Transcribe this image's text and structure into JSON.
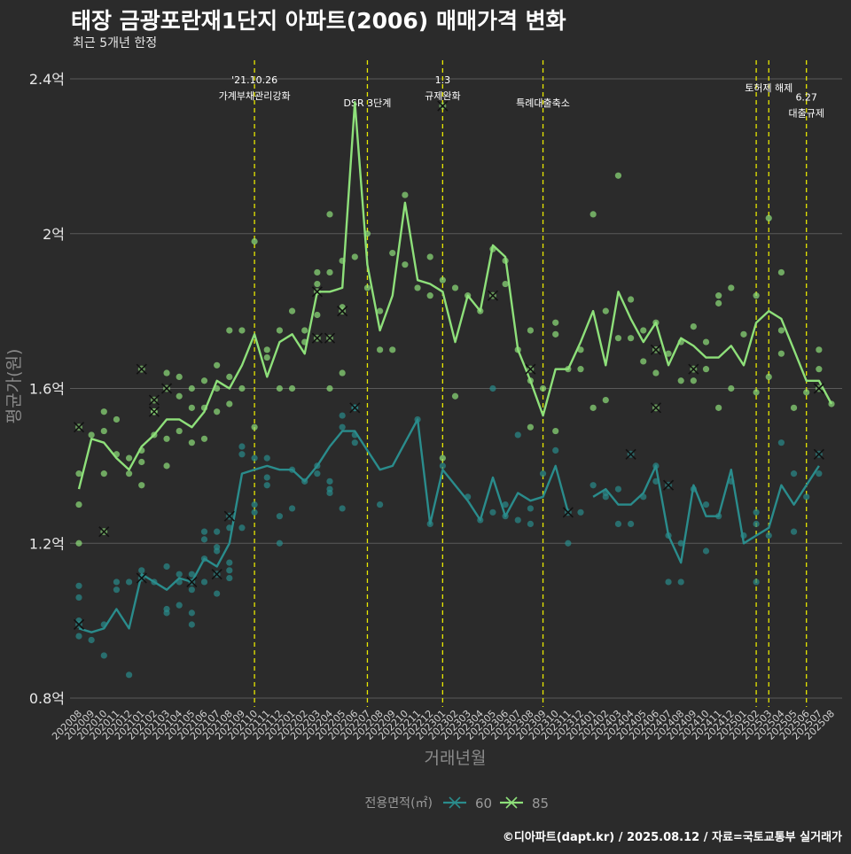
{
  "header": {
    "title": "태장 금광포란재1단지 아파트(2006) 매매가격 변화",
    "subtitle": "최근 5개년 한정",
    "caption": "©디아파트(dapt.kr) / 2025.08.12 / 자료=국토교통부 실거래가"
  },
  "colors": {
    "background": "#2b2b2b",
    "grid": "#5a5a5a",
    "event_line": "#e8e800",
    "s60": "#2a8c8c",
    "s85": "#8ee07a"
  },
  "chart_data": {
    "type": "line",
    "xlabel": "거래년월",
    "ylabel": "평균가(원)",
    "ylim": [
      0.8,
      2.4
    ],
    "yticks": [
      0.8,
      1.2,
      1.6,
      2.0,
      2.4
    ],
    "ytick_labels": [
      "0.8억",
      "1.2억",
      "1.6억",
      "2억",
      "2.4억"
    ],
    "grid": true,
    "legend": {
      "title": "전용면적(㎡)",
      "placement": "bottom",
      "items": [
        "60",
        "85"
      ]
    },
    "categories": [
      "202008",
      "202009",
      "202010",
      "202011",
      "202012",
      "202101",
      "202102",
      "202103",
      "202104",
      "202105",
      "202106",
      "202107",
      "202108",
      "202109",
      "202110",
      "202111",
      "202112",
      "202201",
      "202202",
      "202203",
      "202204",
      "202205",
      "202206",
      "202207",
      "202208",
      "202209",
      "202210",
      "202211",
      "202212",
      "202301",
      "202302",
      "202303",
      "202304",
      "202305",
      "202306",
      "202307",
      "202308",
      "202309",
      "202310",
      "202311",
      "202312",
      "202401",
      "202402",
      "202403",
      "202404",
      "202405",
      "202406",
      "202407",
      "202408",
      "202409",
      "202410",
      "202411",
      "202412",
      "202501",
      "202502",
      "202503",
      "202504",
      "202505",
      "202506",
      "202507",
      "202508"
    ],
    "series": [
      {
        "name": "60",
        "values": [
          0.98,
          0.97,
          0.98,
          1.03,
          0.98,
          1.12,
          1.1,
          1.08,
          1.11,
          1.1,
          1.16,
          1.14,
          1.2,
          1.38,
          1.39,
          1.4,
          1.39,
          1.39,
          1.36,
          1.4,
          1.45,
          1.49,
          1.49,
          1.44,
          1.39,
          1.4,
          1.46,
          1.52,
          1.25,
          1.39,
          1.35,
          1.31,
          1.26,
          1.37,
          1.27,
          1.33,
          1.31,
          1.32,
          1.4,
          1.28,
          null,
          1.32,
          1.34,
          1.3,
          1.3,
          1.33,
          1.4,
          1.22,
          1.15,
          1.35,
          1.27,
          1.27,
          1.39,
          1.2,
          1.22,
          1.24,
          1.35,
          1.3,
          1.35,
          1.4,
          null
        ]
      },
      {
        "name": "85",
        "values": [
          1.34,
          1.47,
          1.46,
          1.42,
          1.39,
          1.45,
          1.48,
          1.52,
          1.52,
          1.5,
          1.54,
          1.62,
          1.6,
          1.66,
          1.74,
          1.63,
          1.72,
          1.74,
          1.69,
          1.85,
          1.85,
          1.86,
          2.34,
          1.92,
          1.75,
          1.84,
          2.08,
          1.88,
          1.87,
          1.85,
          1.72,
          1.84,
          1.8,
          1.97,
          1.94,
          1.7,
          1.62,
          1.53,
          1.65,
          1.65,
          1.72,
          1.8,
          1.66,
          1.85,
          1.78,
          1.72,
          1.77,
          1.66,
          1.73,
          1.71,
          1.68,
          1.68,
          1.71,
          1.66,
          1.77,
          1.8,
          1.78,
          1.7,
          1.62,
          1.62,
          1.56
        ]
      }
    ],
    "scatter_60": [
      [
        "202008",
        1.0
      ],
      [
        "202008",
        0.96
      ],
      [
        "202008",
        1.06
      ],
      [
        "202008",
        1.09
      ],
      [
        "202009",
        0.95
      ],
      [
        "202010",
        0.99
      ],
      [
        "202010",
        0.91
      ],
      [
        "202011",
        1.08
      ],
      [
        "202011",
        1.1
      ],
      [
        "202012",
        0.86
      ],
      [
        "202012",
        1.1
      ],
      [
        "202101",
        1.13
      ],
      [
        "202102",
        1.1
      ],
      [
        "202103",
        1.03
      ],
      [
        "202103",
        1.02
      ],
      [
        "202103",
        1.14
      ],
      [
        "202104",
        1.1
      ],
      [
        "202104",
        1.12
      ],
      [
        "202104",
        1.04
      ],
      [
        "202105",
        1.08
      ],
      [
        "202105",
        1.12
      ],
      [
        "202105",
        1.02
      ],
      [
        "202105",
        0.99
      ],
      [
        "202106",
        1.1
      ],
      [
        "202106",
        1.16
      ],
      [
        "202106",
        1.23
      ],
      [
        "202106",
        1.21
      ],
      [
        "202107",
        1.23
      ],
      [
        "202107",
        1.19
      ],
      [
        "202107",
        1.18
      ],
      [
        "202107",
        1.07
      ],
      [
        "202108",
        1.13
      ],
      [
        "202108",
        1.15
      ],
      [
        "202108",
        1.24
      ],
      [
        "202108",
        1.11
      ],
      [
        "202109",
        1.45
      ],
      [
        "202109",
        1.24
      ],
      [
        "202109",
        1.43
      ],
      [
        "202110",
        1.42
      ],
      [
        "202110",
        1.3
      ],
      [
        "202110",
        1.28
      ],
      [
        "202111",
        1.35
      ],
      [
        "202111",
        1.42
      ],
      [
        "202111",
        1.37
      ],
      [
        "202112",
        1.27
      ],
      [
        "202112",
        1.2
      ],
      [
        "202201",
        1.39
      ],
      [
        "202201",
        1.29
      ],
      [
        "202202",
        1.36
      ],
      [
        "202203",
        1.4
      ],
      [
        "202203",
        1.38
      ],
      [
        "202204",
        1.36
      ],
      [
        "202204",
        1.34
      ],
      [
        "202204",
        1.33
      ],
      [
        "202205",
        1.5
      ],
      [
        "202205",
        1.53
      ],
      [
        "202205",
        1.29
      ],
      [
        "202206",
        1.55
      ],
      [
        "202206",
        1.46
      ],
      [
        "202206",
        1.48
      ],
      [
        "202208",
        1.3
      ],
      [
        "202211",
        1.52
      ],
      [
        "202212",
        1.25
      ],
      [
        "202301",
        1.4
      ],
      [
        "202303",
        1.32
      ],
      [
        "202304",
        1.26
      ],
      [
        "202305",
        1.6
      ],
      [
        "202305",
        1.28
      ],
      [
        "202306",
        1.27
      ],
      [
        "202306",
        1.3
      ],
      [
        "202307",
        1.48
      ],
      [
        "202307",
        1.26
      ],
      [
        "202308",
        1.25
      ],
      [
        "202308",
        1.29
      ],
      [
        "202309",
        1.38
      ],
      [
        "202310",
        1.44
      ],
      [
        "202311",
        1.2
      ],
      [
        "202312",
        1.28
      ],
      [
        "202401",
        1.35
      ],
      [
        "202402",
        1.33
      ],
      [
        "202402",
        1.32
      ],
      [
        "202403",
        1.25
      ],
      [
        "202403",
        1.34
      ],
      [
        "202404",
        1.25
      ],
      [
        "202405",
        1.32
      ],
      [
        "202406",
        1.4
      ],
      [
        "202406",
        1.36
      ],
      [
        "202407",
        1.22
      ],
      [
        "202407",
        1.1
      ],
      [
        "202408",
        1.1
      ],
      [
        "202408",
        1.2
      ],
      [
        "202409",
        1.34
      ],
      [
        "202410",
        1.3
      ],
      [
        "202410",
        1.18
      ],
      [
        "202411",
        1.27
      ],
      [
        "202412",
        1.36
      ],
      [
        "202501",
        1.22
      ],
      [
        "202502",
        1.1
      ],
      [
        "202502",
        1.28
      ],
      [
        "202502",
        1.25
      ],
      [
        "202503",
        1.22
      ],
      [
        "202504",
        1.46
      ],
      [
        "202505",
        1.23
      ],
      [
        "202505",
        1.38
      ],
      [
        "202506",
        1.32
      ],
      [
        "202507",
        1.38
      ]
    ],
    "scatter_85": [
      [
        "202008",
        1.38
      ],
      [
        "202008",
        1.3
      ],
      [
        "202008",
        1.2
      ],
      [
        "202009",
        1.48
      ],
      [
        "202010",
        1.54
      ],
      [
        "202010",
        1.49
      ],
      [
        "202010",
        1.38
      ],
      [
        "202011",
        1.52
      ],
      [
        "202011",
        1.43
      ],
      [
        "202012",
        1.42
      ],
      [
        "202012",
        1.38
      ],
      [
        "202101",
        1.44
      ],
      [
        "202101",
        1.41
      ],
      [
        "202101",
        1.35
      ],
      [
        "202102",
        1.54
      ],
      [
        "202102",
        1.48
      ],
      [
        "202103",
        1.64
      ],
      [
        "202103",
        1.47
      ],
      [
        "202103",
        1.4
      ],
      [
        "202104",
        1.63
      ],
      [
        "202104",
        1.58
      ],
      [
        "202104",
        1.49
      ],
      [
        "202105",
        1.6
      ],
      [
        "202105",
        1.55
      ],
      [
        "202105",
        1.46
      ],
      [
        "202106",
        1.62
      ],
      [
        "202106",
        1.55
      ],
      [
        "202106",
        1.47
      ],
      [
        "202107",
        1.66
      ],
      [
        "202107",
        1.6
      ],
      [
        "202107",
        1.54
      ],
      [
        "202108",
        1.75
      ],
      [
        "202108",
        1.63
      ],
      [
        "202108",
        1.56
      ],
      [
        "202109",
        1.75
      ],
      [
        "202109",
        1.6
      ],
      [
        "202110",
        1.98
      ],
      [
        "202110",
        1.5
      ],
      [
        "202111",
        1.7
      ],
      [
        "202111",
        1.68
      ],
      [
        "202112",
        1.75
      ],
      [
        "202112",
        1.6
      ],
      [
        "202201",
        1.8
      ],
      [
        "202201",
        1.6
      ],
      [
        "202202",
        1.75
      ],
      [
        "202202",
        1.72
      ],
      [
        "202203",
        1.9
      ],
      [
        "202203",
        1.87
      ],
      [
        "202203",
        1.79
      ],
      [
        "202204",
        2.05
      ],
      [
        "202204",
        1.9
      ],
      [
        "202204",
        1.6
      ],
      [
        "202205",
        1.93
      ],
      [
        "202205",
        1.81
      ],
      [
        "202205",
        1.64
      ],
      [
        "202206",
        1.94
      ],
      [
        "202207",
        2.0
      ],
      [
        "202207",
        1.86
      ],
      [
        "202208",
        1.8
      ],
      [
        "202208",
        1.7
      ],
      [
        "202209",
        1.95
      ],
      [
        "202209",
        1.7
      ],
      [
        "202210",
        2.1
      ],
      [
        "202210",
        1.92
      ],
      [
        "202211",
        1.86
      ],
      [
        "202212",
        1.94
      ],
      [
        "202212",
        1.84
      ],
      [
        "202301",
        1.88
      ],
      [
        "202301",
        1.42
      ],
      [
        "202302",
        1.86
      ],
      [
        "202302",
        1.58
      ],
      [
        "202303",
        1.84
      ],
      [
        "202304",
        1.8
      ],
      [
        "202305",
        1.96
      ],
      [
        "202306",
        1.93
      ],
      [
        "202306",
        1.87
      ],
      [
        "202307",
        1.7
      ],
      [
        "202308",
        1.75
      ],
      [
        "202308",
        1.62
      ],
      [
        "202308",
        1.5
      ],
      [
        "202309",
        1.6
      ],
      [
        "202310",
        1.77
      ],
      [
        "202310",
        1.74
      ],
      [
        "202310",
        1.49
      ],
      [
        "202311",
        1.65
      ],
      [
        "202312",
        1.7
      ],
      [
        "202312",
        1.65
      ],
      [
        "202401",
        2.05
      ],
      [
        "202401",
        1.55
      ],
      [
        "202402",
        1.8
      ],
      [
        "202402",
        1.57
      ],
      [
        "202403",
        2.15
      ],
      [
        "202403",
        1.73
      ],
      [
        "202404",
        1.83
      ],
      [
        "202404",
        1.73
      ],
      [
        "202405",
        1.75
      ],
      [
        "202405",
        1.67
      ],
      [
        "202406",
        1.77
      ],
      [
        "202406",
        1.64
      ],
      [
        "202407",
        1.69
      ],
      [
        "202408",
        1.72
      ],
      [
        "202408",
        1.62
      ],
      [
        "202409",
        1.76
      ],
      [
        "202409",
        1.62
      ],
      [
        "202410",
        1.72
      ],
      [
        "202410",
        1.65
      ],
      [
        "202411",
        1.84
      ],
      [
        "202411",
        1.82
      ],
      [
        "202411",
        1.55
      ],
      [
        "202412",
        1.86
      ],
      [
        "202412",
        1.6
      ],
      [
        "202501",
        1.74
      ],
      [
        "202502",
        1.84
      ],
      [
        "202502",
        1.59
      ],
      [
        "202503",
        2.04
      ],
      [
        "202503",
        1.63
      ],
      [
        "202504",
        1.9
      ],
      [
        "202504",
        1.75
      ],
      [
        "202504",
        1.69
      ],
      [
        "202505",
        1.55
      ],
      [
        "202506",
        1.59
      ],
      [
        "202507",
        1.7
      ],
      [
        "202507",
        1.65
      ],
      [
        "202508",
        1.56
      ]
    ],
    "cancelled_60": [
      [
        "202008",
        0.99
      ],
      [
        "202101",
        1.11
      ],
      [
        "202105",
        1.1
      ],
      [
        "202107",
        1.12
      ],
      [
        "202108",
        1.27
      ],
      [
        "202206",
        1.55
      ],
      [
        "202311",
        1.28
      ],
      [
        "202404",
        1.43
      ],
      [
        "202407",
        1.35
      ],
      [
        "202507",
        1.43
      ]
    ],
    "cancelled_85": [
      [
        "202008",
        1.5
      ],
      [
        "202010",
        1.23
      ],
      [
        "202101",
        1.65
      ],
      [
        "202102",
        1.54
      ],
      [
        "202102",
        1.57
      ],
      [
        "202103",
        1.6
      ],
      [
        "202203",
        1.73
      ],
      [
        "202203",
        1.85
      ],
      [
        "202204",
        1.73
      ],
      [
        "202205",
        1.8
      ],
      [
        "202301",
        2.33
      ],
      [
        "202305",
        1.84
      ],
      [
        "202308",
        1.65
      ],
      [
        "202406",
        1.7
      ],
      [
        "202406",
        1.55
      ],
      [
        "202409",
        1.65
      ],
      [
        "202507",
        1.6
      ]
    ],
    "events": [
      {
        "date": "202110",
        "offset": 0,
        "lines": [
          "'21.10.26",
          "가계부채관리강화"
        ],
        "row": 0
      },
      {
        "date": "202207",
        "offset": 0,
        "lines": [
          "DSR 3단계"
        ],
        "row": 1
      },
      {
        "date": "202301",
        "offset": 0,
        "lines": [
          "1.3",
          "규제완화"
        ],
        "row": 0
      },
      {
        "date": "202309",
        "offset": 0,
        "lines": [
          "특례대출축소"
        ],
        "row": 1
      },
      {
        "date": "202502",
        "offset": 0,
        "lines": [],
        "row": 0
      },
      {
        "date": "202503",
        "offset": 0,
        "lines": [
          "토허제 해제"
        ],
        "row": 0.35
      },
      {
        "date": "202506",
        "offset": 0,
        "lines": [
          "6.27",
          "대출규제"
        ],
        "row": 0.75
      }
    ]
  }
}
